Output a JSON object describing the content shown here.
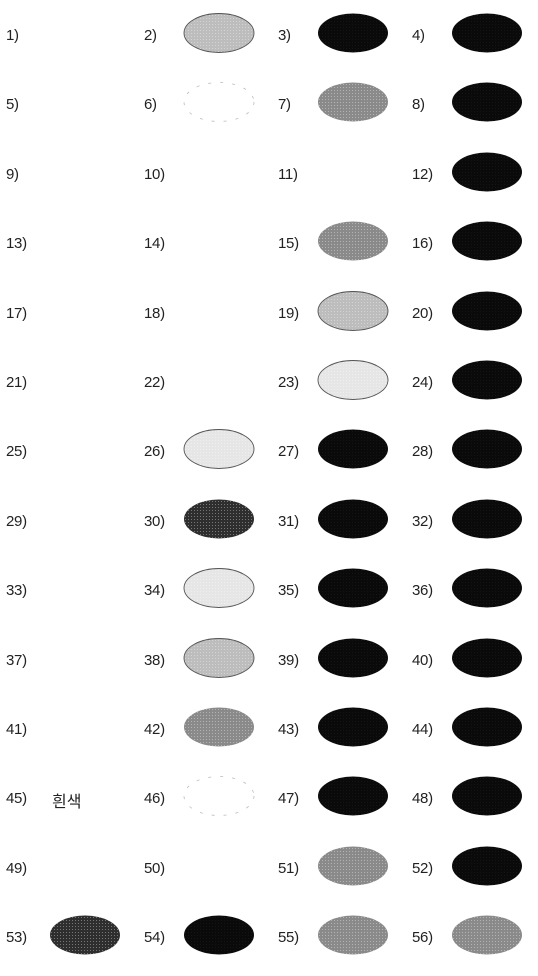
{
  "swatches": [
    {
      "label": "1)",
      "shade": "none"
    },
    {
      "label": "2)",
      "shade": "light-gray"
    },
    {
      "label": "3)",
      "shade": "black"
    },
    {
      "label": "4)",
      "shade": "black"
    },
    {
      "label": "5)",
      "shade": "none"
    },
    {
      "label": "6)",
      "shade": "white"
    },
    {
      "label": "7)",
      "shade": "gray"
    },
    {
      "label": "8)",
      "shade": "black"
    },
    {
      "label": "9)",
      "shade": "none"
    },
    {
      "label": "10)",
      "shade": "none"
    },
    {
      "label": "11)",
      "shade": "none"
    },
    {
      "label": "12)",
      "shade": "black"
    },
    {
      "label": "13)",
      "shade": "none"
    },
    {
      "label": "14)",
      "shade": "none"
    },
    {
      "label": "15)",
      "shade": "gray"
    },
    {
      "label": "16)",
      "shade": "black"
    },
    {
      "label": "17)",
      "shade": "none"
    },
    {
      "label": "18)",
      "shade": "none"
    },
    {
      "label": "19)",
      "shade": "light-gray"
    },
    {
      "label": "20)",
      "shade": "black"
    },
    {
      "label": "21)",
      "shade": "none"
    },
    {
      "label": "22)",
      "shade": "none"
    },
    {
      "label": "23)",
      "shade": "very-light"
    },
    {
      "label": "24)",
      "shade": "black"
    },
    {
      "label": "25)",
      "shade": "none"
    },
    {
      "label": "26)",
      "shade": "very-light"
    },
    {
      "label": "27)",
      "shade": "black"
    },
    {
      "label": "28)",
      "shade": "black"
    },
    {
      "label": "29)",
      "shade": "none"
    },
    {
      "label": "30)",
      "shade": "dark-gray"
    },
    {
      "label": "31)",
      "shade": "black"
    },
    {
      "label": "32)",
      "shade": "black"
    },
    {
      "label": "33)",
      "shade": "none"
    },
    {
      "label": "34)",
      "shade": "very-light"
    },
    {
      "label": "35)",
      "shade": "black"
    },
    {
      "label": "36)",
      "shade": "black"
    },
    {
      "label": "37)",
      "shade": "none"
    },
    {
      "label": "38)",
      "shade": "light-gray"
    },
    {
      "label": "39)",
      "shade": "black"
    },
    {
      "label": "40)",
      "shade": "black"
    },
    {
      "label": "41)",
      "shade": "none"
    },
    {
      "label": "42)",
      "shade": "gray"
    },
    {
      "label": "43)",
      "shade": "black"
    },
    {
      "label": "44)",
      "shade": "black"
    },
    {
      "label": "45)",
      "shade": "text",
      "note": "흰색"
    },
    {
      "label": "46)",
      "shade": "white"
    },
    {
      "label": "47)",
      "shade": "black"
    },
    {
      "label": "48)",
      "shade": "black"
    },
    {
      "label": "49)",
      "shade": "none"
    },
    {
      "label": "50)",
      "shade": "none"
    },
    {
      "label": "51)",
      "shade": "gray"
    },
    {
      "label": "52)",
      "shade": "black"
    },
    {
      "label": "53)",
      "shade": "dark-gray"
    },
    {
      "label": "54)",
      "shade": "black"
    },
    {
      "label": "55)",
      "shade": "gray"
    },
    {
      "label": "56)",
      "shade": "gray"
    }
  ],
  "shade_colors": {
    "black": "#0a0a0a",
    "dark-gray": "#2e2e2e",
    "gray": "#8a8a8a",
    "light-gray": "#bdbdbd",
    "very-light": "#e6e6e6",
    "white": "#ffffff"
  }
}
